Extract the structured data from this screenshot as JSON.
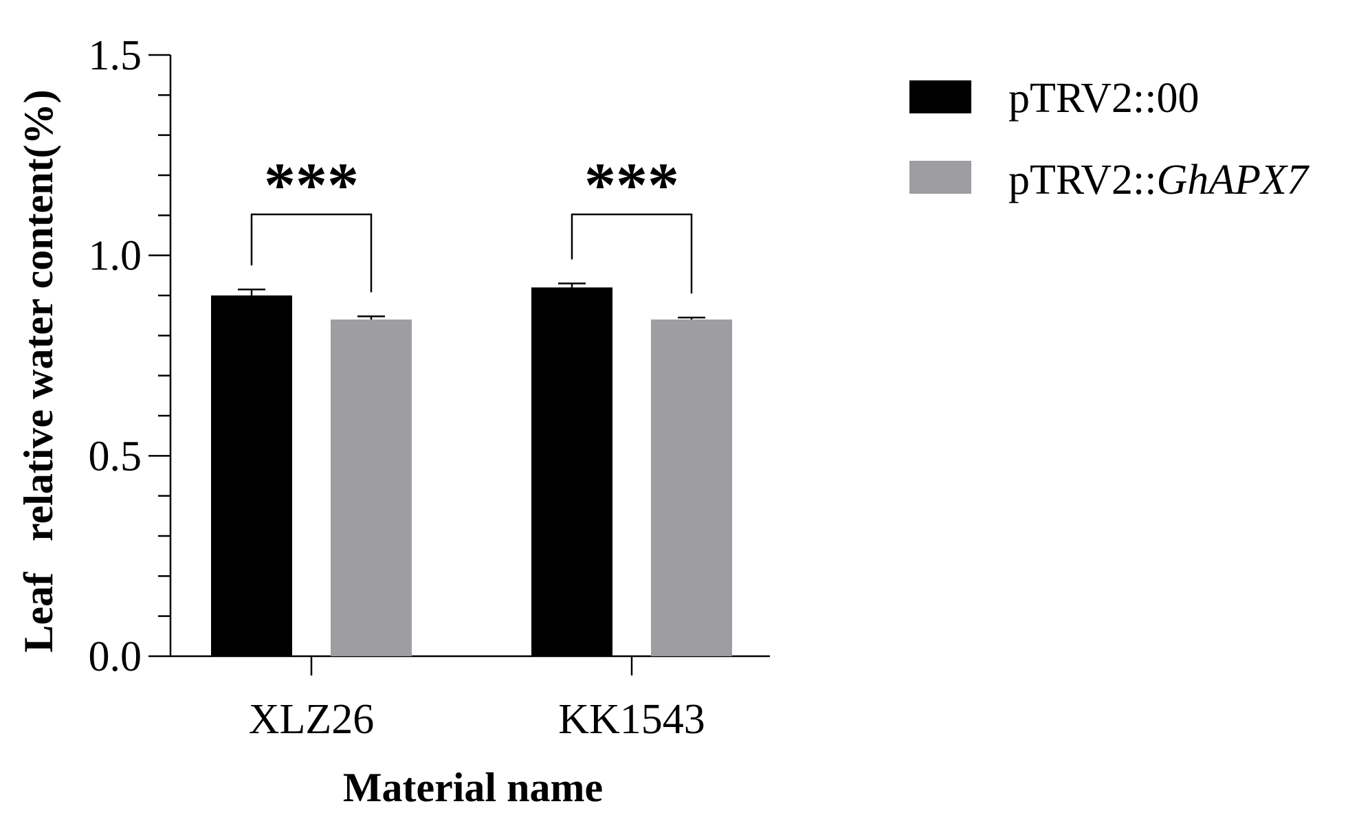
{
  "chart_data": {
    "type": "bar",
    "categories": [
      "XLZ26",
      "KK1543"
    ],
    "series": [
      {
        "name": "pTRV2::00",
        "color": "#000000",
        "values": [
          0.9,
          0.92
        ],
        "errors": [
          0.015,
          0.01
        ]
      },
      {
        "name_prefix": "pTRV2::",
        "name_italic": "GhAPX7",
        "color": "#9e9ea2",
        "values": [
          0.84,
          0.84
        ],
        "errors": [
          0.008,
          0.005
        ]
      }
    ],
    "xlabel": "Material name",
    "ylabel": "Leaf   relative water content(%)",
    "ylim": [
      0,
      1.5
    ],
    "yticks": [
      "0.0",
      "0.5",
      "1.0",
      "1.5"
    ],
    "yminor_step": 0.1,
    "significance": [
      {
        "category": "XLZ26",
        "label": "***"
      },
      {
        "category": "KK1543",
        "label": "***"
      }
    ],
    "legend_position": "top-right",
    "grid": false
  }
}
